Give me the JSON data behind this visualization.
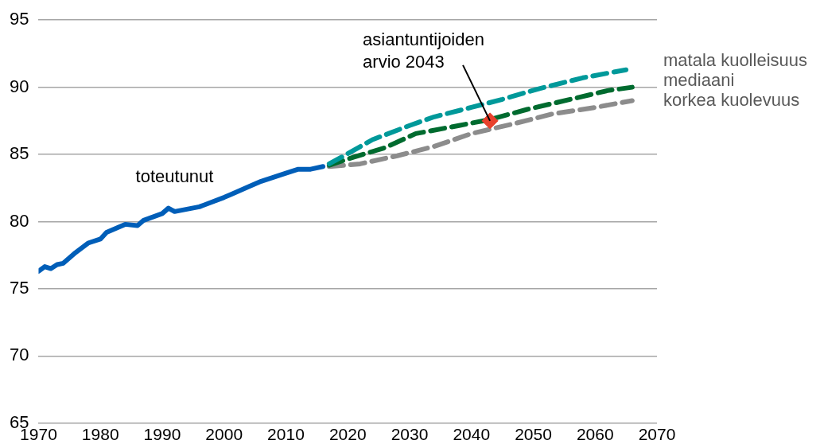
{
  "chart_data": {
    "type": "line",
    "xlim": [
      1970,
      2070
    ],
    "xticks": [
      1970,
      1980,
      1990,
      2000,
      2010,
      2020,
      2030,
      2040,
      2050,
      2060,
      2070
    ],
    "ylim": [
      65,
      95
    ],
    "yticks": [
      65,
      70,
      75,
      80,
      85,
      90,
      95
    ],
    "grid": "y",
    "legend": false,
    "series": [
      {
        "name": "toteutunut",
        "color": "#005eb8",
        "line_style": "solid",
        "x": [
          1970,
          1971,
          1972,
          1973,
          1974,
          1976,
          1978,
          1980,
          1981,
          1984,
          1986,
          1987,
          1990,
          1991,
          1992,
          1996,
          2000,
          2001,
          2004,
          2006,
          2010,
          2012,
          2014,
          2016
        ],
        "values": [
          76.3,
          76.65,
          76.5,
          76.8,
          76.9,
          77.7,
          78.4,
          78.7,
          79.2,
          79.8,
          79.7,
          80.1,
          80.6,
          81.0,
          80.75,
          81.1,
          81.8,
          82.0,
          82.6,
          83.0,
          83.6,
          83.9,
          83.9,
          84.1
        ]
      },
      {
        "name": "matala kuolleisuus",
        "color": "#00999a",
        "line_style": "dashed",
        "x": [
          2017,
          2019,
          2024,
          2030,
          2034,
          2040,
          2045,
          2051,
          2058,
          2065
        ],
        "values": [
          84.3,
          84.8,
          86.1,
          87.15,
          87.8,
          88.5,
          89.1,
          89.9,
          90.7,
          91.3
        ]
      },
      {
        "name": "mediaani",
        "color": "#006b2f",
        "line_style": "dashed",
        "x": [
          2017,
          2021,
          2026,
          2031,
          2038,
          2043,
          2049,
          2056,
          2062,
          2066
        ],
        "values": [
          84.2,
          84.8,
          85.5,
          86.55,
          87.15,
          87.6,
          88.35,
          89.1,
          89.75,
          90.0
        ]
      },
      {
        "name": "korkea kuolevuus",
        "color": "#8c8c8c",
        "line_style": "dashed",
        "x": [
          2017,
          2022,
          2028,
          2034,
          2040,
          2047,
          2053,
          2060,
          2066
        ],
        "values": [
          84.1,
          84.3,
          84.9,
          85.6,
          86.55,
          87.3,
          88.0,
          88.5,
          89.0
        ]
      },
      {
        "type": "scatter",
        "marker": "diamond",
        "color": "#e8412c",
        "x": [
          2043
        ],
        "values": [
          87.5
        ]
      }
    ],
    "annotations": [
      {
        "text": "asiantuntijoiden\narvio 2043",
        "x": 2043,
        "y": 87.5
      }
    ]
  }
}
